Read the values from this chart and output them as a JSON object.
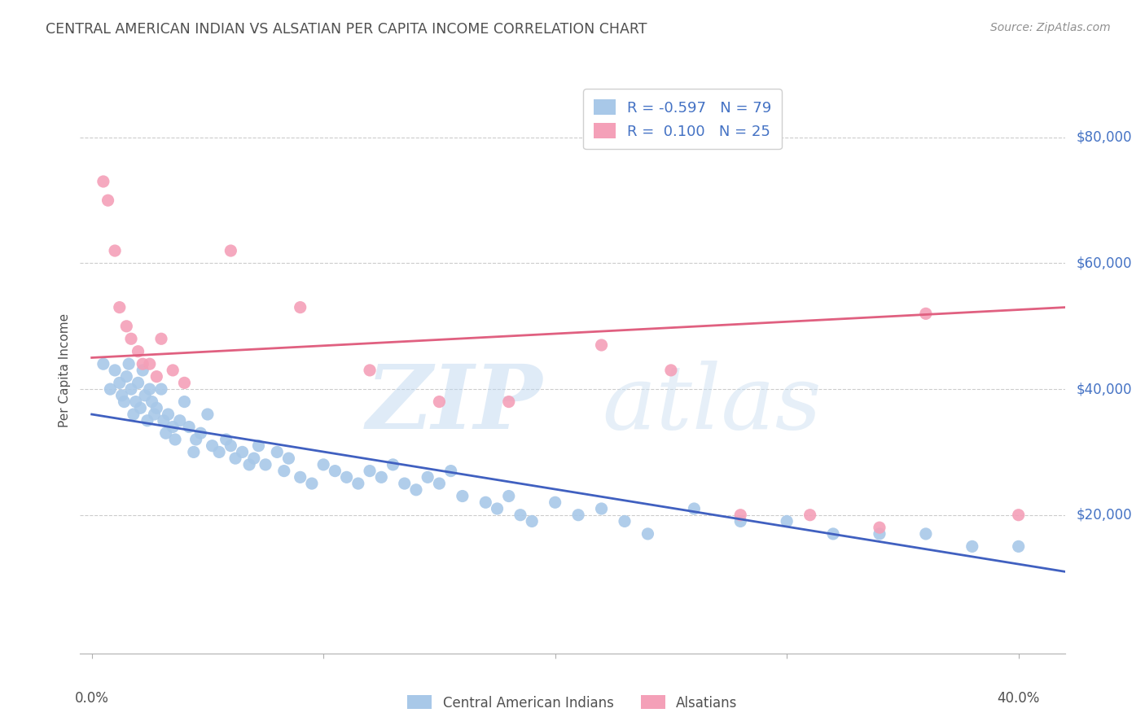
{
  "title": "CENTRAL AMERICAN INDIAN VS ALSATIAN PER CAPITA INCOME CORRELATION CHART",
  "source": "Source: ZipAtlas.com",
  "ylabel": "Per Capita Income",
  "watermark_zip": "ZIP",
  "watermark_atlas": "atlas",
  "legend_blue_r": "-0.597",
  "legend_blue_n": "79",
  "legend_pink_r": "0.100",
  "legend_pink_n": "25",
  "blue_color": "#a8c8e8",
  "pink_color": "#f4a0b8",
  "line_blue": "#4060c0",
  "line_pink": "#e06080",
  "title_color": "#505050",
  "source_color": "#909090",
  "label_color": "#4472c4",
  "grid_color": "#cccccc",
  "bg_color": "#ffffff",
  "ytick_labels": [
    "$80,000",
    "$60,000",
    "$40,000",
    "$20,000"
  ],
  "ytick_values": [
    80000,
    60000,
    40000,
    20000
  ],
  "ylim": [
    -2000,
    88000
  ],
  "xlim": [
    -0.005,
    0.42
  ],
  "blue_scatter_x": [
    0.005,
    0.008,
    0.01,
    0.012,
    0.013,
    0.014,
    0.015,
    0.016,
    0.017,
    0.018,
    0.019,
    0.02,
    0.021,
    0.022,
    0.023,
    0.024,
    0.025,
    0.026,
    0.027,
    0.028,
    0.03,
    0.031,
    0.032,
    0.033,
    0.035,
    0.036,
    0.038,
    0.04,
    0.042,
    0.044,
    0.045,
    0.047,
    0.05,
    0.052,
    0.055,
    0.058,
    0.06,
    0.062,
    0.065,
    0.068,
    0.07,
    0.072,
    0.075,
    0.08,
    0.083,
    0.085,
    0.09,
    0.095,
    0.1,
    0.105,
    0.11,
    0.115,
    0.12,
    0.125,
    0.13,
    0.135,
    0.14,
    0.145,
    0.15,
    0.155,
    0.16,
    0.17,
    0.175,
    0.18,
    0.185,
    0.19,
    0.2,
    0.21,
    0.22,
    0.23,
    0.24,
    0.26,
    0.28,
    0.3,
    0.32,
    0.34,
    0.36,
    0.38,
    0.4
  ],
  "blue_scatter_y": [
    44000,
    40000,
    43000,
    41000,
    39000,
    38000,
    42000,
    44000,
    40000,
    36000,
    38000,
    41000,
    37000,
    43000,
    39000,
    35000,
    40000,
    38000,
    36000,
    37000,
    40000,
    35000,
    33000,
    36000,
    34000,
    32000,
    35000,
    38000,
    34000,
    30000,
    32000,
    33000,
    36000,
    31000,
    30000,
    32000,
    31000,
    29000,
    30000,
    28000,
    29000,
    31000,
    28000,
    30000,
    27000,
    29000,
    26000,
    25000,
    28000,
    27000,
    26000,
    25000,
    27000,
    26000,
    28000,
    25000,
    24000,
    26000,
    25000,
    27000,
    23000,
    22000,
    21000,
    23000,
    20000,
    19000,
    22000,
    20000,
    21000,
    19000,
    17000,
    21000,
    19000,
    19000,
    17000,
    17000,
    17000,
    15000,
    15000
  ],
  "pink_scatter_x": [
    0.005,
    0.007,
    0.01,
    0.012,
    0.015,
    0.017,
    0.02,
    0.022,
    0.025,
    0.028,
    0.03,
    0.035,
    0.04,
    0.06,
    0.09,
    0.12,
    0.15,
    0.18,
    0.22,
    0.25,
    0.28,
    0.31,
    0.34,
    0.36,
    0.4
  ],
  "pink_scatter_y": [
    73000,
    70000,
    62000,
    53000,
    50000,
    48000,
    46000,
    44000,
    44000,
    42000,
    48000,
    43000,
    41000,
    62000,
    53000,
    43000,
    38000,
    38000,
    47000,
    43000,
    20000,
    20000,
    18000,
    52000,
    20000
  ],
  "blue_line_x0": 0.0,
  "blue_line_x1": 0.42,
  "blue_line_y0": 36000,
  "blue_line_y1": 11000,
  "pink_line_x0": 0.0,
  "pink_line_x1": 0.42,
  "pink_line_y0": 45000,
  "pink_line_y1": 53000
}
